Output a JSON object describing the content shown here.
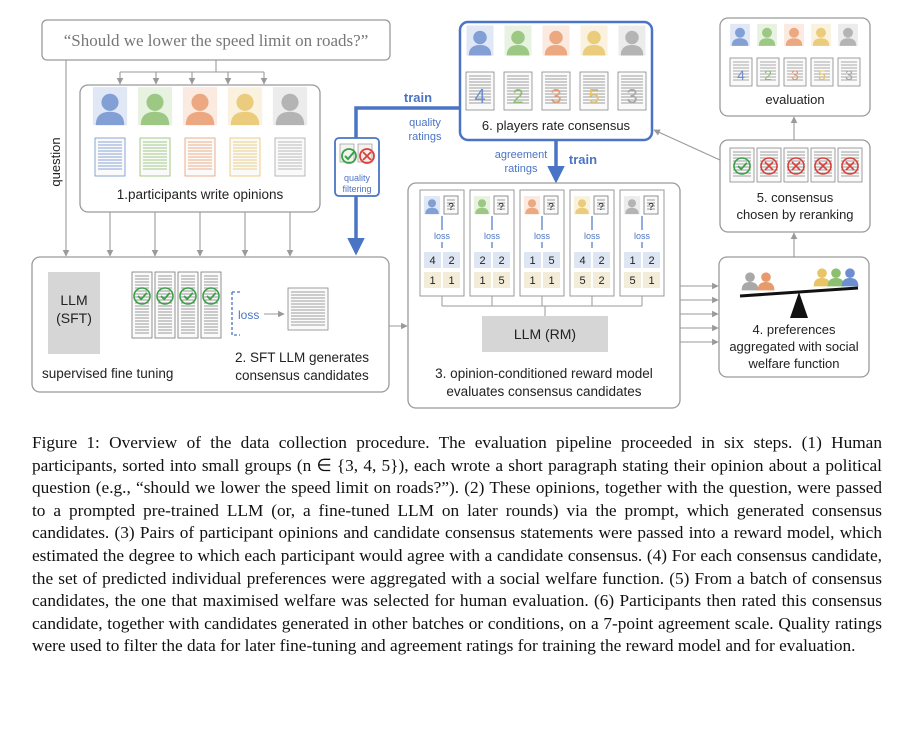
{
  "figure": {
    "question": "“Should we lower the speed limit on roads?”",
    "question_side_label": "question",
    "box1_label": "1.participants write opinions",
    "llm_sft_label_1": "LLM",
    "llm_sft_label_2": "(SFT)",
    "sft_caption": "supervised fine tuning",
    "loss_label": "loss",
    "box2_label_1": "2. SFT LLM generates",
    "box2_label_2": "consensus candidates",
    "quality_filtering_1": "quality",
    "quality_filtering_2": "filtering",
    "train_label_1": "train",
    "quality_ratings_1": "quality",
    "quality_ratings_2": "ratings",
    "agreement_ratings_1": "agreement",
    "agreement_ratings_2": "ratings",
    "train_label_2": "train",
    "box6_label": "6. players rate consensus",
    "box6_scores": [
      "4",
      "2",
      "3",
      "5",
      "3"
    ],
    "rm_loss": "loss",
    "rm_q": "?",
    "rm_pairs": [
      {
        "top": [
          "4",
          "2"
        ],
        "bottom": [
          "1",
          "1"
        ]
      },
      {
        "top": [
          "2",
          "2"
        ],
        "bottom": [
          "1",
          "5"
        ]
      },
      {
        "top": [
          "1",
          "5"
        ],
        "bottom": [
          "1",
          "1"
        ]
      },
      {
        "top": [
          "4",
          "2"
        ],
        "bottom": [
          "5",
          "2"
        ]
      },
      {
        "top": [
          "1",
          "2"
        ],
        "bottom": [
          "5",
          "1"
        ]
      }
    ],
    "llm_rm_label": "LLM (RM)",
    "box3_label_1": "3. opinion-conditioned reward model",
    "box3_label_2": "evaluates consensus candidates",
    "box4_label_1": "4. preferences",
    "box4_label_2": "aggregated with social",
    "box4_label_3": "welfare function",
    "box5_label_1": "5. consensus",
    "box5_label_2": "chosen by reranking",
    "eval_scores": [
      "4",
      "2",
      "3",
      "5",
      "3"
    ],
    "eval_label": "evaluation"
  },
  "colors": {
    "blue": "#6d8fd0",
    "green": "#8cbf6f",
    "orange": "#e89a6c",
    "yellow": "#e8c466",
    "gray": "#a8a8a8",
    "accent_blue": "#4a74c4",
    "check_green": "#3aa046",
    "cross_red": "#d9413a"
  },
  "caption": {
    "l1": "Figure 1: Overview of the data collection procedure. The evaluation pipeline proceeded in six steps.",
    "l2": "(1) Human participants, sorted into small groups (n ∈ {3, 4, 5}), each wrote a short paragraph stating",
    "l3": "their opinion about a political question (e.g., “should we lower the speed limit on roads?”). (2) These",
    "l4": "opinions, together with the question, were passed to a prompted pre-trained LLM (or, a fine-tuned",
    "l5": "LLM on later rounds) via the prompt, which generated consensus candidates. (3) Pairs of participant",
    "l6": "opinions and candidate consensus statements were passed into a reward model, which estimated the",
    "l7": "degree to which each participant would agree with a candidate consensus. (4) For each consensus",
    "l8": "candidate, the set of predicted individual preferences were aggregated with a social welfare function.",
    "l9": "(5) From a batch of consensus candidates, the one that maximised welfare was selected for human",
    "l10": "evaluation. (6) Participants then rated this consensus candidate, together with candidates generated in",
    "l11": "other batches or conditions, on a 7-point agreement scale. Quality ratings were used to filter the data",
    "l12": "for later fine-tuning and agreement ratings for training the reward model and for evaluation."
  }
}
